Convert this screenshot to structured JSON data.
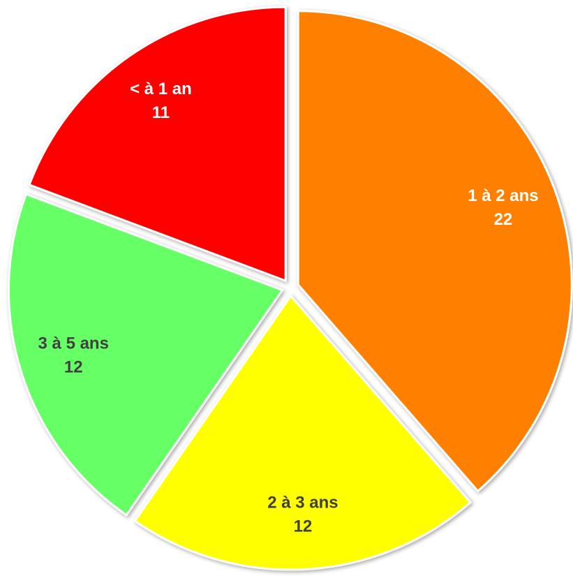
{
  "chart_data": {
    "type": "pie",
    "categories": [
      "1 à 2 ans",
      "2 à 3 ans",
      "3 à 5 ans",
      "< à 1 an"
    ],
    "values": [
      22,
      12,
      12,
      11
    ],
    "colors": [
      "#ff8000",
      "#ffff00",
      "#66ff66",
      "#ff0000"
    ],
    "label_colors": [
      "#ffffff",
      "#404040",
      "#404040",
      "#ffffff"
    ],
    "start_angle": 0,
    "direction": "clockwise",
    "exploded": true
  }
}
